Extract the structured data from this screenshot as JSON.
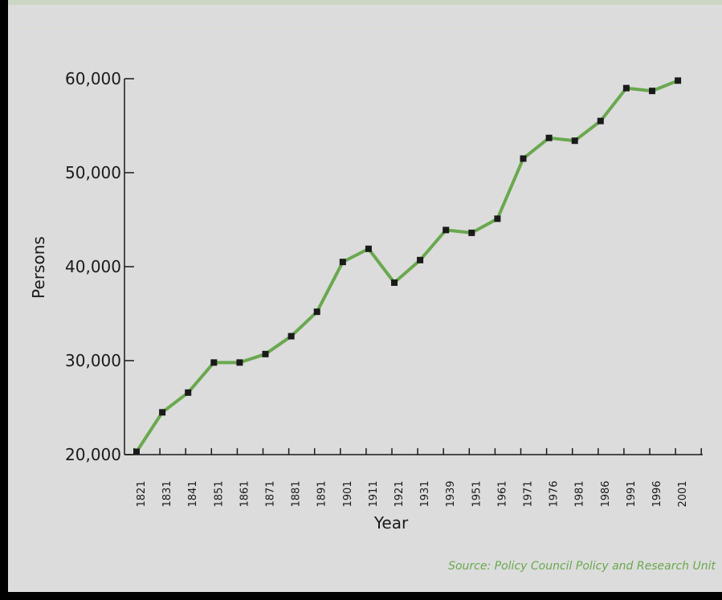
{
  "chart_data": {
    "type": "line",
    "title": "",
    "xlabel": "Year",
    "ylabel": "Persons",
    "ylim": [
      20000,
      60000
    ],
    "yticks": [
      20000,
      30000,
      40000,
      50000,
      60000
    ],
    "ytick_labels": [
      "20,000",
      "30,000",
      "40,000",
      "50,000",
      "60,000"
    ],
    "categories": [
      "1821",
      "1831",
      "1841",
      "1851",
      "1861",
      "1871",
      "1881",
      "1891",
      "1901",
      "1911",
      "1921",
      "1931",
      "1939",
      "1951",
      "1961",
      "1971",
      "1976",
      "1981",
      "1986",
      "1991",
      "1996",
      "2001"
    ],
    "values": [
      20300,
      24500,
      26600,
      29800,
      29800,
      30700,
      32600,
      35200,
      40500,
      41900,
      38300,
      40700,
      43900,
      43600,
      45100,
      51500,
      53700,
      53400,
      55500,
      59000,
      58700,
      59800
    ],
    "line_color": "#6aa84f",
    "marker_color": "#1a1a1a",
    "grid": false,
    "source": "Source: Policy Council Policy and Research Unit"
  }
}
